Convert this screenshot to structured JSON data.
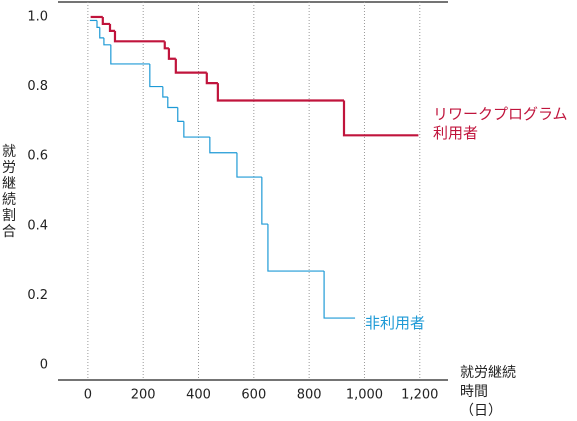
{
  "chart_data": {
    "type": "step",
    "y_label": "就労継続割合",
    "x_label": "就労継続時間（日）",
    "xlim": [
      -108,
      1302
    ],
    "ylim": [
      -0.043,
      1.043
    ],
    "xticks": [
      0,
      200,
      400,
      600,
      800,
      {
        "value": 1000,
        "label": "1,000"
      },
      {
        "value": 1200,
        "label": "1,200"
      }
    ],
    "yticks": [
      {
        "value": 1,
        "label": "1.0"
      },
      0.8,
      0.6,
      0.4,
      0.2,
      0
    ],
    "grid": true,
    "series": [
      {
        "name": "リワークプログラム利用者",
        "color": "#c0143c",
        "x": [
          10,
          54,
          80,
          98,
          278,
          293,
          318,
          430,
          470,
          926,
          1195
        ],
        "values": [
          1.0,
          0.98,
          0.96,
          0.93,
          0.91,
          0.88,
          0.84,
          0.81,
          0.76,
          0.66,
          0.66
        ]
      },
      {
        "name": "非利用者",
        "color": "#1e9ad6",
        "x": [
          7,
          33,
          43,
          58,
          83,
          224,
          271,
          289,
          325,
          347,
          441,
          539,
          629,
          651,
          854,
          966
        ],
        "values": [
          0.99,
          0.97,
          0.94,
          0.92,
          0.865,
          0.8,
          0.77,
          0.74,
          0.7,
          0.655,
          0.61,
          0.54,
          0.405,
          0.27,
          0.135,
          0.135
        ]
      }
    ]
  }
}
